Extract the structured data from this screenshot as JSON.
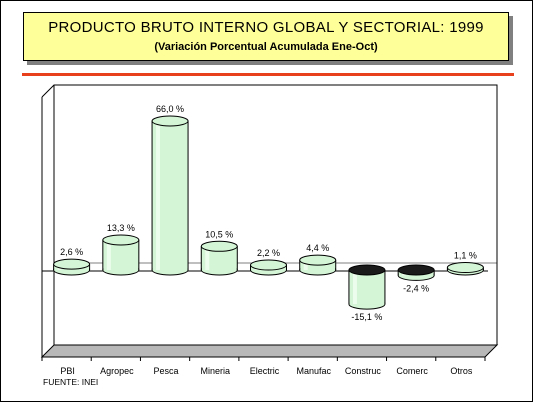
{
  "header": {
    "title": "PRODUCTO BRUTO INTERNO GLOBAL Y SECTORIAL: 1999",
    "subtitle": "(Variación Porcentual Acumulada Ene-Oct)"
  },
  "source": "FUENTE: INEI",
  "colors": {
    "title_bg": "#ffff99",
    "rule": "#e8401c",
    "bar_fill": "#d4f5d6",
    "negative_top": "#1a1a1a",
    "floor": "#b8b8b8"
  },
  "chart_data": {
    "type": "bar",
    "title": "PRODUCTO BRUTO INTERNO GLOBAL Y SECTORIAL: 1999",
    "subtitle": "(Variación Porcentual Acumulada Ene-Oct)",
    "categories": [
      "PBI",
      "Agropec",
      "Pesca",
      "Mineria",
      "Electric",
      "Manufac",
      "Construc",
      "Comerc",
      "Otros"
    ],
    "values": [
      2.6,
      13.3,
      66.0,
      10.5,
      2.2,
      4.4,
      -15.1,
      -2.4,
      1.1
    ],
    "labels": [
      "2,6 %",
      "13,3 %",
      "66,0 %",
      "10,5 %",
      "2,2 %",
      "4,4 %",
      "-15,1 %",
      "-2,4 %",
      "1,1 %"
    ],
    "ylim": [
      -37,
      80
    ],
    "grid": false,
    "legend": "none"
  }
}
